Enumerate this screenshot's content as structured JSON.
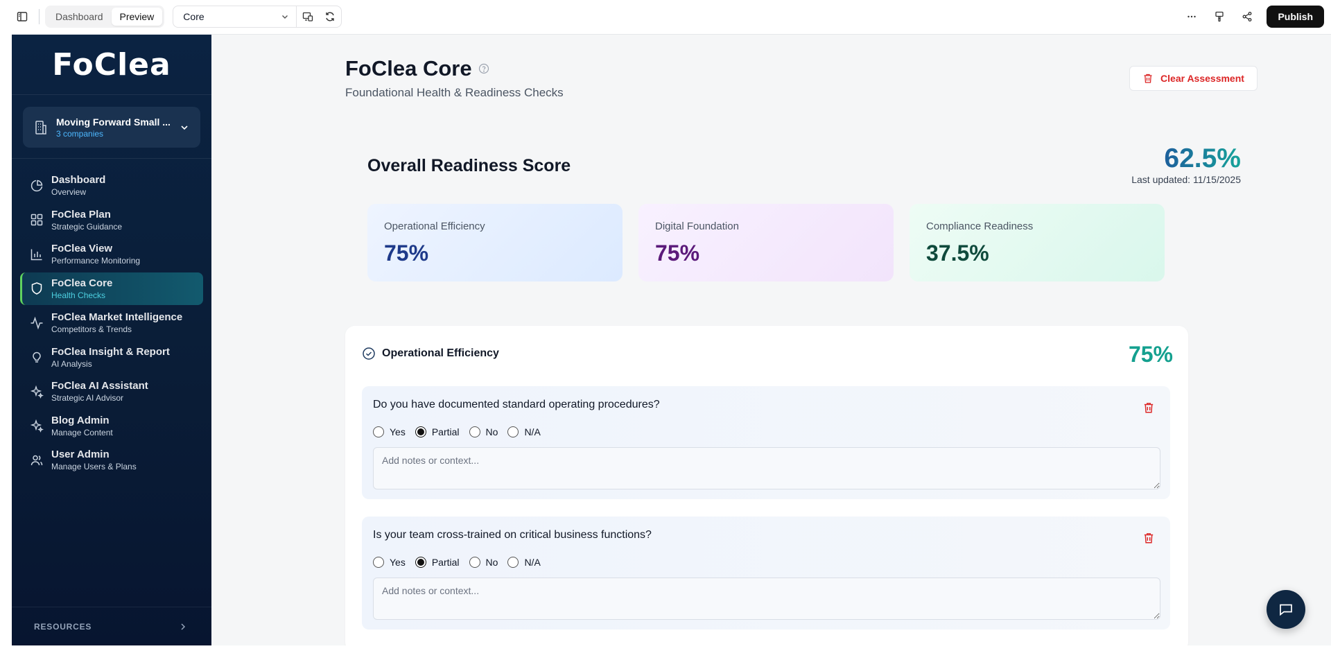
{
  "topbar": {
    "mode_tabs": [
      "Dashboard",
      "Preview"
    ],
    "active_mode": "Preview",
    "page_select_value": "Core",
    "publish_label": "Publish"
  },
  "sidebar": {
    "logo_text": "FoClea",
    "company": {
      "name": "Moving Forward Small ...",
      "count": "3 companies"
    },
    "items": [
      {
        "label": "Dashboard",
        "sub": "Overview",
        "icon": "pie-chart-icon"
      },
      {
        "label": "FoClea Plan",
        "sub": "Strategic Guidance",
        "icon": "grid-icon"
      },
      {
        "label": "FoClea View",
        "sub": "Performance Monitoring",
        "icon": "bar-chart-icon"
      },
      {
        "label": "FoClea Core",
        "sub": "Health Checks",
        "icon": "shield-icon",
        "active": true
      },
      {
        "label": "FoClea Market Intelligence",
        "sub": "Competitors & Trends",
        "icon": "activity-icon"
      },
      {
        "label": "FoClea Insight & Report",
        "sub": "AI Analysis",
        "icon": "lightbulb-icon"
      },
      {
        "label": "FoClea AI Assistant",
        "sub": "Strategic AI Advisor",
        "icon": "sparkles-icon"
      },
      {
        "label": "Blog Admin",
        "sub": "Manage Content",
        "icon": "sparkles-icon"
      },
      {
        "label": "User Admin",
        "sub": "Manage Users & Plans",
        "icon": "users-icon"
      }
    ],
    "resources_label": "RESOURCES"
  },
  "header": {
    "title": "FoClea Core",
    "subtitle": "Foundational Health & Readiness Checks",
    "clear_label": "Clear Assessment"
  },
  "score": {
    "title": "Overall Readiness Score",
    "value": "62.5%",
    "updated": "Last updated: 11/15/2025"
  },
  "categories": [
    {
      "label": "Operational Efficiency",
      "value": "75%"
    },
    {
      "label": "Digital Foundation",
      "value": "75%"
    },
    {
      "label": "Compliance Readiness",
      "value": "37.5%"
    }
  ],
  "section": {
    "title": "Operational Efficiency",
    "score": "75%",
    "options": [
      "Yes",
      "Partial",
      "No",
      "N/A"
    ],
    "notes_placeholder": "Add notes or context...",
    "questions": [
      {
        "text": "Do you have documented standard operating procedures?",
        "selected": "Partial"
      },
      {
        "text": "Is your team cross-trained on critical business functions?",
        "selected": "Partial"
      }
    ]
  },
  "colors": {
    "sidebar_bg": "#0b2342",
    "active_accent": "#5fd35f",
    "score_gradient_start": "#1d5f9c",
    "score_gradient_end": "#16a39a",
    "danger": "#dc2626"
  }
}
